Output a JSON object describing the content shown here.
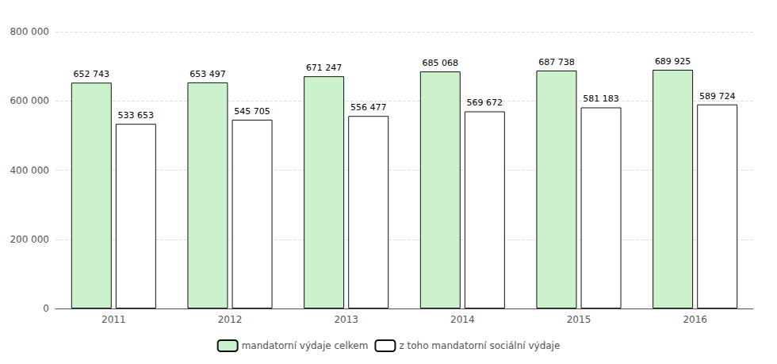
{
  "chart_data": {
    "type": "bar",
    "categories": [
      "2011",
      "2012",
      "2013",
      "2014",
      "2015",
      "2016"
    ],
    "series": [
      {
        "name": "mandatorní výdaje celkem",
        "color": "#ccf2cc",
        "values": [
          652743,
          653497,
          671247,
          685068,
          687738,
          689925
        ],
        "value_labels": [
          "652 743",
          "653 497",
          "671 247",
          "685 068",
          "687 738",
          "689 925"
        ]
      },
      {
        "name": "z toho mandatorní sociální výdaje",
        "color": "#ffffff",
        "values": [
          533653,
          545705,
          556477,
          569672,
          581183,
          589724
        ],
        "value_labels": [
          "533 653",
          "545 705",
          "556 477",
          "569 672",
          "581 183",
          "589 724"
        ]
      }
    ],
    "ylim": [
      0,
      800000
    ],
    "yticks": [
      0,
      {
        "value": 200000,
        "label": "200 000"
      },
      {
        "value": 400000,
        "label": "400 000"
      },
      {
        "value": 600000,
        "label": "600 000"
      },
      {
        "value": 800000,
        "label": "800 000"
      }
    ],
    "grid": true,
    "legend": "bottom",
    "data_labels": true
  }
}
